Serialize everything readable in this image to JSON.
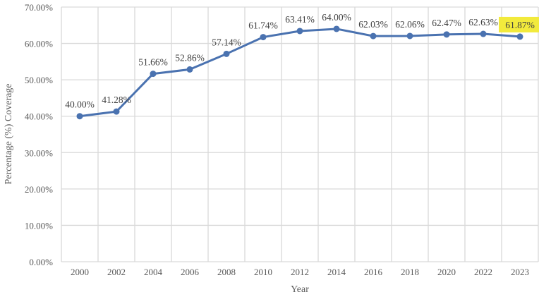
{
  "chart_data": {
    "type": "line",
    "title": "",
    "xlabel": "Year",
    "ylabel": "Percentage (%) Coverage",
    "ylim": [
      0,
      70
    ],
    "yticks": [
      "0.00%",
      "10.00%",
      "20.00%",
      "30.00%",
      "40.00%",
      "50.00%",
      "60.00%",
      "70.00%"
    ],
    "grid": true,
    "categories": [
      "2000",
      "2002",
      "2004",
      "2006",
      "2008",
      "2010",
      "2012",
      "2014",
      "2016",
      "2018",
      "2020",
      "2022",
      "2023"
    ],
    "series": [
      {
        "name": "Coverage",
        "color": "#4a72b0",
        "values": [
          40.0,
          41.28,
          51.66,
          52.86,
          57.14,
          61.74,
          63.41,
          64.0,
          62.03,
          62.06,
          62.47,
          62.63,
          61.87
        ],
        "labels": [
          "40.00%",
          "41.28%",
          "51.66%",
          "52.86%",
          "57.14%",
          "61.74%",
          "63.41%",
          "64.00%",
          "62.03%",
          "62.06%",
          "62.47%",
          "62.63%",
          "61.87%"
        ]
      }
    ],
    "highlighted_label_index": 12,
    "highlight_color": "#f2ea3c"
  }
}
